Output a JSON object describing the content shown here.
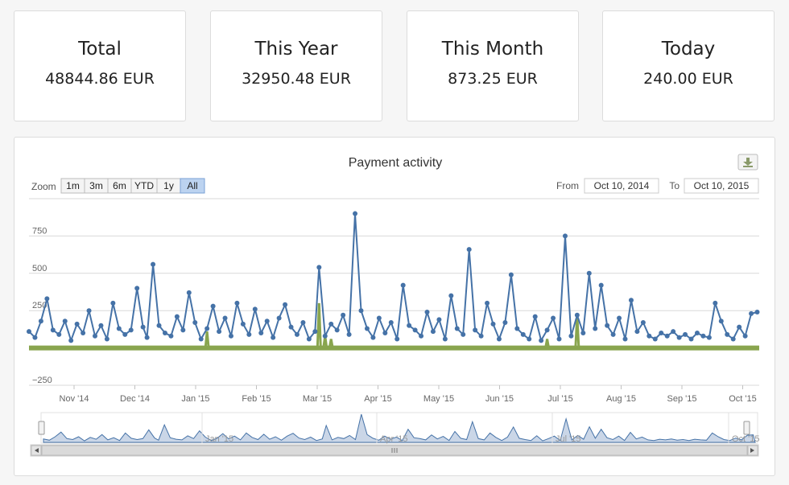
{
  "cards": [
    {
      "title": "Total",
      "value": "48844.86 EUR"
    },
    {
      "title": "This Year",
      "value": "32950.48 EUR"
    },
    {
      "title": "This Month",
      "value": "873.25 EUR"
    },
    {
      "title": "Today",
      "value": "240.00 EUR"
    }
  ],
  "zoom": {
    "label": "Zoom",
    "buttons": [
      "1m",
      "3m",
      "6m",
      "YTD",
      "1y",
      "All"
    ],
    "selected": "All"
  },
  "range": {
    "from_label": "From",
    "from": "Oct 10, 2014",
    "to_label": "To",
    "to": "Oct 10, 2015"
  },
  "colors": {
    "series1": "#4572a7",
    "series2": "#89a54e",
    "navigator": "#b3c4dd"
  },
  "icons": {
    "export": "download-icon"
  },
  "chart_data": {
    "type": "line",
    "title": "Payment activity",
    "x_ticks": [
      "Nov '14",
      "Dec '14",
      "Jan '15",
      "Feb '15",
      "Mar '15",
      "Apr '15",
      "May '15",
      "Jun '15",
      "Jul '15",
      "Aug '15",
      "Sep '15",
      "Oct '15"
    ],
    "y_ticks": [
      "750",
      "500",
      "250",
      "−250"
    ],
    "ylim": [
      -250,
      1000
    ],
    "xlim": [
      "2014-10-10",
      "2015-10-10"
    ],
    "navigator_ticks": [
      "Jan '15",
      "Apr '15",
      "Jul '15",
      "Oct '15"
    ],
    "grid": true,
    "series": [
      {
        "x": [
          "2014-10-10",
          "2014-10-13",
          "2014-10-16",
          "2014-10-19",
          "2014-10-22",
          "2014-10-25",
          "2014-10-28",
          "2014-10-31",
          "2014-11-03",
          "2014-11-06",
          "2014-11-09",
          "2014-11-12",
          "2014-11-15",
          "2014-11-18",
          "2014-11-21",
          "2014-11-24",
          "2014-11-27",
          "2014-11-30",
          "2014-12-03",
          "2014-12-06",
          "2014-12-08",
          "2014-12-11",
          "2014-12-14",
          "2014-12-17",
          "2014-12-20",
          "2014-12-23",
          "2014-12-26",
          "2014-12-29",
          "2015-01-01",
          "2015-01-04",
          "2015-01-07",
          "2015-01-10",
          "2015-01-13",
          "2015-01-16",
          "2015-01-19",
          "2015-01-22",
          "2015-01-25",
          "2015-01-28",
          "2015-01-31",
          "2015-02-03",
          "2015-02-06",
          "2015-02-09",
          "2015-02-12",
          "2015-02-15",
          "2015-02-18",
          "2015-02-21",
          "2015-02-24",
          "2015-02-27",
          "2015-03-02",
          "2015-03-04",
          "2015-03-07",
          "2015-03-10",
          "2015-03-13",
          "2015-03-16",
          "2015-03-19",
          "2015-03-22",
          "2015-03-25",
          "2015-03-28",
          "2015-03-31",
          "2015-04-03",
          "2015-04-06",
          "2015-04-09",
          "2015-04-12",
          "2015-04-15",
          "2015-04-18",
          "2015-04-21",
          "2015-04-24",
          "2015-04-27",
          "2015-04-30",
          "2015-05-03",
          "2015-05-06",
          "2015-05-09",
          "2015-05-12",
          "2015-05-15",
          "2015-05-18",
          "2015-05-21",
          "2015-05-24",
          "2015-05-27",
          "2015-05-30",
          "2015-06-02",
          "2015-06-05",
          "2015-06-08",
          "2015-06-11",
          "2015-06-14",
          "2015-06-17",
          "2015-06-20",
          "2015-06-23",
          "2015-06-26",
          "2015-06-29",
          "2015-07-02",
          "2015-07-05",
          "2015-07-08",
          "2015-07-11",
          "2015-07-14",
          "2015-07-17",
          "2015-07-20",
          "2015-07-23",
          "2015-07-26",
          "2015-07-29",
          "2015-08-01",
          "2015-08-04",
          "2015-08-07",
          "2015-08-10",
          "2015-08-13",
          "2015-08-16",
          "2015-08-19",
          "2015-08-22",
          "2015-08-25",
          "2015-08-28",
          "2015-08-31",
          "2015-09-03",
          "2015-09-06",
          "2015-09-09",
          "2015-09-12",
          "2015-09-15",
          "2015-09-18",
          "2015-09-21",
          "2015-09-24",
          "2015-09-27",
          "2015-09-30",
          "2015-10-03",
          "2015-10-06",
          "2015-10-09"
        ],
        "values": [
          110,
          70,
          180,
          330,
          120,
          90,
          180,
          50,
          160,
          100,
          250,
          80,
          150,
          60,
          300,
          130,
          90,
          120,
          400,
          140,
          70,
          560,
          150,
          100,
          80,
          210,
          120,
          370,
          170,
          60,
          130,
          280,
          110,
          200,
          80,
          300,
          160,
          90,
          260,
          100,
          180,
          70,
          200,
          290,
          140,
          90,
          170,
          60,
          110,
          540,
          80,
          160,
          120,
          220,
          90,
          900,
          250,
          130,
          70,
          200,
          100,
          170,
          60,
          420,
          150,
          120,
          80,
          240,
          110,
          190,
          60,
          350,
          130,
          90,
          660,
          120,
          80,
          300,
          160,
          60,
          170,
          490,
          130,
          90,
          60,
          210,
          50,
          120,
          200,
          60,
          750,
          80,
          220,
          100,
          500,
          130,
          420,
          150,
          90,
          200,
          60,
          320,
          110,
          170,
          80,
          60,
          100,
          80,
          110,
          70,
          90,
          60,
          100,
          80,
          70,
          300,
          180,
          90,
          60,
          140,
          80,
          230,
          240
        ]
      },
      {
        "x": [
          "2015-03-04",
          "2015-03-07",
          "2015-03-10",
          "2015-01-07",
          "2015-06-26",
          "2015-07-11"
        ],
        "values": [
          300,
          80,
          60,
          110,
          60,
          220
        ]
      }
    ]
  }
}
